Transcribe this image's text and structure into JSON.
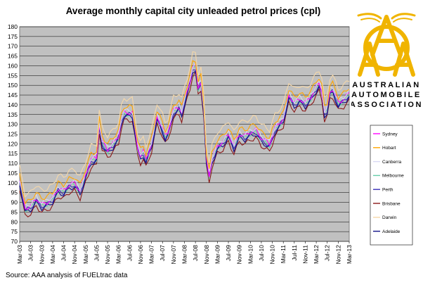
{
  "title": "Average monthly capital city unleaded petrol prices (cpl)",
  "source": "Source: AAA analysis of FUELtrac data",
  "logo": {
    "lines": [
      "AUSTRALIAN",
      "AUTOMOBILE",
      "ASSOCIATION"
    ],
    "monogram": "AAA",
    "color": "#f0b400"
  },
  "chart_data": {
    "type": "line",
    "ylim": [
      70,
      180
    ],
    "yticks": [
      70,
      75,
      80,
      85,
      90,
      95,
      100,
      105,
      110,
      115,
      120,
      125,
      130,
      135,
      140,
      145,
      150,
      155,
      160,
      165,
      170,
      175,
      180
    ],
    "xticks": [
      "Mar-03",
      "Jul-03",
      "Nov-03",
      "Mar-04",
      "Jul-04",
      "Nov-04",
      "Mar-05",
      "Jul-05",
      "Nov-05",
      "Mar-06",
      "Jul-06",
      "Nov-06",
      "Mar-07",
      "Jul-07",
      "Nov-07",
      "Mar-08",
      "Jul-08",
      "Nov-08",
      "Mar-09",
      "Jul-09",
      "Nov-09",
      "Mar-10",
      "Jul-10",
      "Nov-10",
      "Mar-11",
      "Jul-11",
      "Nov-11",
      "Mar-12",
      "Jul-12",
      "Nov-12",
      "Mar-13"
    ],
    "x_start": "Mar-03",
    "x_end": "Mar-13",
    "grid": "horizontal",
    "plot_background": "#c0c0c0",
    "legend_position": "right",
    "series": [
      {
        "name": "Sydney",
        "color": "#ff00ff",
        "offset": 0
      },
      {
        "name": "Hobart",
        "color": "#ffa500",
        "offset": 3
      },
      {
        "name": "Canberra",
        "color": "#d8d8f4",
        "offset": 1
      },
      {
        "name": "Melbourne",
        "color": "#66cdaa",
        "offset": -1
      },
      {
        "name": "Perth",
        "color": "#3a30b8",
        "offset": -1
      },
      {
        "name": "Brisbane",
        "color": "#8b1a1a",
        "offset": -4
      },
      {
        "name": "Darwin",
        "color": "#f5d7a8",
        "offset": 7
      },
      {
        "name": "Adelaide",
        "color": "#111188",
        "offset": -2
      }
    ],
    "base_profile": [
      [
        "Mar-03",
        101
      ],
      [
        "May-03",
        87
      ],
      [
        "Jul-03",
        88
      ],
      [
        "Sep-03",
        92
      ],
      [
        "Nov-03",
        89
      ],
      [
        "Jan-04",
        90
      ],
      [
        "Mar-04",
        92
      ],
      [
        "May-04",
        97
      ],
      [
        "Jul-04",
        96
      ],
      [
        "Sep-04",
        99
      ],
      [
        "Nov-04",
        100
      ],
      [
        "Jan-05",
        96
      ],
      [
        "Mar-05",
        104
      ],
      [
        "May-05",
        112
      ],
      [
        "Jul-05",
        113
      ],
      [
        "Aug-05",
        130
      ],
      [
        "Sep-05",
        121
      ],
      [
        "Nov-05",
        117
      ],
      [
        "Jan-06",
        120
      ],
      [
        "Mar-06",
        124
      ],
      [
        "Apr-06",
        132
      ],
      [
        "May-06",
        136
      ],
      [
        "Aug-06",
        136
      ],
      [
        "Oct-06",
        118
      ],
      [
        "Nov-06",
        114
      ],
      [
        "Dec-06",
        116
      ],
      [
        "Jan-07",
        112
      ],
      [
        "Mar-07",
        120
      ],
      [
        "May-07",
        134
      ],
      [
        "Jul-07",
        128
      ],
      [
        "Aug-07",
        124
      ],
      [
        "Sep-07",
        126
      ],
      [
        "Nov-07",
        137
      ],
      [
        "Jan-08",
        139
      ],
      [
        "Feb-08",
        136
      ],
      [
        "Mar-08",
        142
      ],
      [
        "May-08",
        152
      ],
      [
        "Jun-08",
        159
      ],
      [
        "Jul-08",
        160
      ],
      [
        "Aug-08",
        149
      ],
      [
        "Sep-08",
        152
      ],
      [
        "Oct-08",
        138
      ],
      [
        "Nov-08",
        112
      ],
      [
        "Dec-08",
        104
      ],
      [
        "Jan-09",
        112
      ],
      [
        "Mar-09",
        119
      ],
      [
        "May-09",
        121
      ],
      [
        "Jul-09",
        125
      ],
      [
        "Sep-09",
        119
      ],
      [
        "Nov-09",
        125
      ],
      [
        "Jan-10",
        124
      ],
      [
        "Mar-10",
        126
      ],
      [
        "May-10",
        127
      ],
      [
        "Jul-10",
        123
      ],
      [
        "Sep-10",
        121
      ],
      [
        "Oct-10",
        120
      ],
      [
        "Dec-10",
        128
      ],
      [
        "Mar-11",
        133
      ],
      [
        "Apr-11",
        139
      ],
      [
        "May-11",
        145
      ],
      [
        "Jul-11",
        141
      ],
      [
        "Sep-11",
        143
      ],
      [
        "Nov-11",
        141
      ],
      [
        "Jan-12",
        144
      ],
      [
        "Mar-12",
        149
      ],
      [
        "Apr-12",
        151
      ],
      [
        "May-12",
        147
      ],
      [
        "Jun-12",
        136
      ],
      [
        "Jul-12",
        138
      ],
      [
        "Aug-12",
        147
      ],
      [
        "Sep-12",
        148
      ],
      [
        "Nov-12",
        141
      ],
      [
        "Jan-13",
        143
      ],
      [
        "Mar-13",
        146
      ]
    ]
  }
}
